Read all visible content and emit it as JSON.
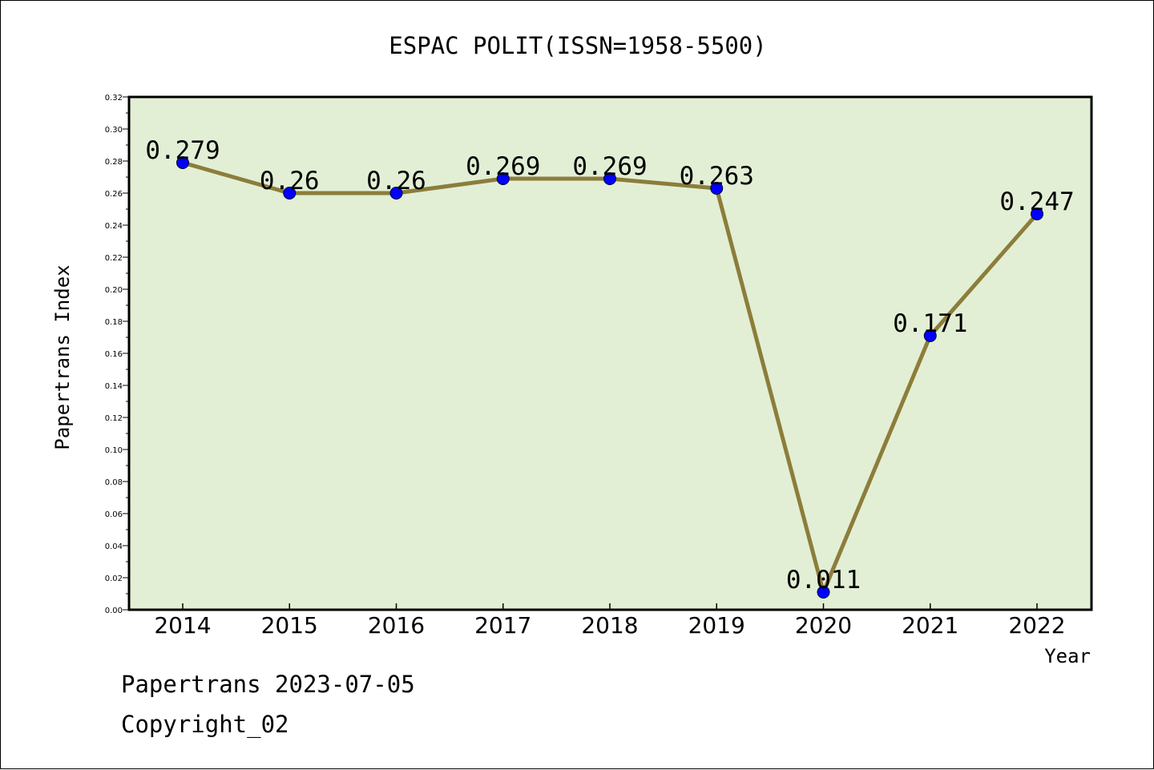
{
  "chart_data": {
    "type": "line",
    "title": "ESPAC POLIT(ISSN=1958-5500)",
    "xlabel": "Year",
    "ylabel": "Papertrans Index",
    "categories": [
      "2014",
      "2015",
      "2016",
      "2017",
      "2018",
      "2019",
      "2020",
      "2021",
      "2022"
    ],
    "values": [
      0.279,
      0.26,
      0.26,
      0.269,
      0.269,
      0.263,
      0.011,
      0.171,
      0.247
    ],
    "data_labels": [
      "0.279",
      "0.26",
      "0.26",
      "0.269",
      "0.269",
      "0.263",
      "0.011",
      "0.171",
      "0.247"
    ],
    "ylim": [
      0,
      0.32
    ],
    "y_ticks": [
      "0.00",
      "0.02",
      "0.04",
      "0.06",
      "0.08",
      "0.10",
      "0.12",
      "0.14",
      "0.16",
      "0.18",
      "0.20",
      "0.22",
      "0.24",
      "0.26",
      "0.28",
      "0.30",
      "0.32"
    ],
    "grid": false,
    "colors": {
      "plot_background": "#e2efd5",
      "line": "#8c7d3a",
      "marker": "#0000ff"
    }
  },
  "footer": {
    "date_line": "Papertrans 2023-07-05",
    "copyright": "Copyright_02"
  }
}
